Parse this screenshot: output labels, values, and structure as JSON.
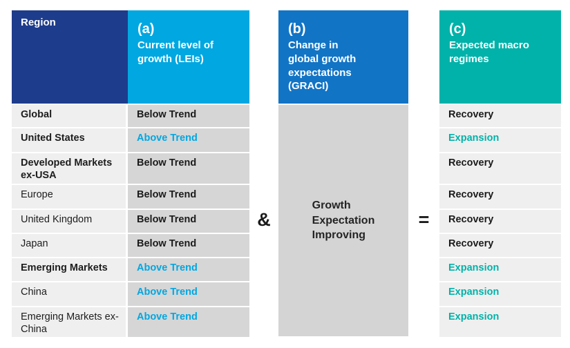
{
  "columns": {
    "region_header": "Region",
    "a": {
      "tag": "(a)",
      "title": "Current level of\ngrowth (LEIs)"
    },
    "b": {
      "tag": "(b)",
      "title": "Change in\nglobal growth\nexpectations\n(GRACI)",
      "body": "Growth\nExpectation\nImproving"
    },
    "c": {
      "tag": "(c)",
      "title": "Expected macro\nregimes"
    }
  },
  "operators": {
    "and": "&",
    "equals": "="
  },
  "rows": [
    {
      "region": "Global",
      "lei": "Below Trend",
      "regime": "Recovery"
    },
    {
      "region": "United States",
      "lei": "Above Trend",
      "regime": "Expansion"
    },
    {
      "region": "Developed Markets ex-USA",
      "lei": "Below Trend",
      "regime": "Recovery"
    },
    {
      "region": "Europe",
      "lei": "Below Trend",
      "regime": "Recovery"
    },
    {
      "region": "United Kingdom",
      "lei": "Below Trend",
      "regime": "Recovery"
    },
    {
      "region": "Japan",
      "lei": "Below Trend",
      "regime": "Recovery"
    },
    {
      "region": "Emerging Markets",
      "lei": "Above Trend",
      "regime": "Expansion"
    },
    {
      "region": "China",
      "lei": "Above Trend",
      "regime": "Expansion"
    },
    {
      "region": "Emerging Markets ex-China",
      "lei": "Above Trend",
      "regime": "Expansion"
    }
  ],
  "colors": {
    "navy": "#1e3c8c",
    "blue": "#00a7e1",
    "midblue": "#1274c5",
    "teal": "#00b2a9",
    "cell_light": "#efefef",
    "cell_dark": "#d6d6d6"
  }
}
